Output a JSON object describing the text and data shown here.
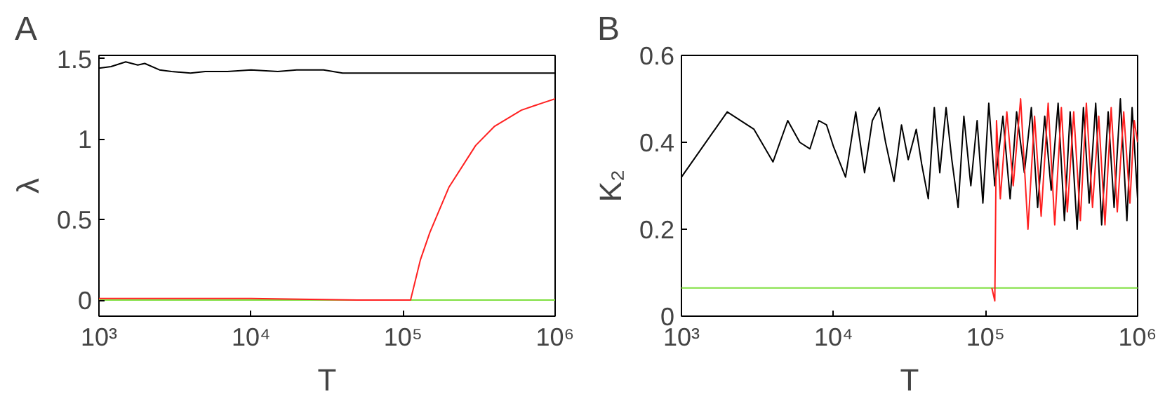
{
  "chart_data": [
    {
      "type": "line",
      "title": "A",
      "xlabel": "T",
      "ylabel": "λ",
      "log": "x",
      "xlim": [
        1000,
        1000000
      ],
      "xticks": [
        {
          "value": 1000,
          "label": "10³"
        },
        {
          "value": 10000,
          "label": "10⁴"
        },
        {
          "value": 100000,
          "label": "10⁵"
        },
        {
          "value": 1000000,
          "label": "10⁶"
        }
      ],
      "ylim": [
        -0.1,
        1.52
      ],
      "yticks": [
        0,
        0.5,
        1,
        1.5
      ],
      "series": [
        {
          "color": "#000000",
          "x": [
            1000,
            1200,
            1500,
            1800,
            2000,
            2500,
            3000,
            4000,
            5000,
            7000,
            10000,
            15000,
            20000,
            30000,
            40000,
            60000,
            100000,
            200000,
            500000,
            1000000
          ],
          "values": [
            1.44,
            1.45,
            1.48,
            1.46,
            1.47,
            1.43,
            1.42,
            1.41,
            1.42,
            1.42,
            1.43,
            1.42,
            1.43,
            1.43,
            1.41,
            1.41,
            1.41,
            1.41,
            1.41,
            1.41
          ]
        },
        {
          "color": "#7fdf3f",
          "x": [
            1000,
            1000000
          ],
          "values": [
            0,
            0
          ]
        },
        {
          "color": "#ff2020",
          "x": [
            1000,
            10000,
            50000,
            112000,
            130000,
            150000,
            200000,
            300000,
            400000,
            600000,
            800000,
            1000000
          ],
          "values": [
            0.01,
            0.01,
            0,
            0,
            0.25,
            0.42,
            0.7,
            0.96,
            1.08,
            1.18,
            1.22,
            1.25
          ]
        }
      ]
    },
    {
      "type": "line",
      "title": "B",
      "xlabel": "T",
      "ylabel": "K₂",
      "log": "x",
      "xlim": [
        1000,
        1000000
      ],
      "xticks": [
        {
          "value": 1000,
          "label": "10³"
        },
        {
          "value": 10000,
          "label": "10⁴"
        },
        {
          "value": 100000,
          "label": "10⁵"
        },
        {
          "value": 1000000,
          "label": "10⁶"
        }
      ],
      "ylim": [
        0,
        0.6
      ],
      "yticks": [
        0,
        0.2,
        0.4,
        0.6
      ],
      "series": [
        {
          "color": "#000000",
          "x": [
            1000,
            2000,
            3000,
            4000,
            5000,
            6000,
            7000,
            8000,
            9000,
            10000,
            12000,
            14000,
            16000,
            18000,
            20000,
            22000,
            25000,
            28000,
            31000,
            35000,
            38000,
            42000,
            46000,
            50000,
            55000,
            60000,
            66000,
            72000,
            80000,
            88000,
            96000,
            105000,
            115000,
            130000,
            145000,
            160000,
            180000,
            200000,
            220000,
            245000,
            270000,
            300000,
            330000,
            360000,
            400000,
            440000,
            480000,
            530000,
            580000,
            640000,
            700000,
            770000,
            850000,
            920000,
            1000000
          ],
          "values": [
            0.32,
            0.47,
            0.43,
            0.355,
            0.45,
            0.4,
            0.385,
            0.45,
            0.44,
            0.39,
            0.32,
            0.47,
            0.33,
            0.45,
            0.48,
            0.4,
            0.31,
            0.44,
            0.36,
            0.43,
            0.35,
            0.27,
            0.48,
            0.33,
            0.48,
            0.36,
            0.25,
            0.46,
            0.3,
            0.45,
            0.26,
            0.49,
            0.3,
            0.46,
            0.27,
            0.47,
            0.33,
            0.48,
            0.25,
            0.46,
            0.29,
            0.49,
            0.22,
            0.47,
            0.2,
            0.48,
            0.26,
            0.49,
            0.21,
            0.47,
            0.25,
            0.5,
            0.22,
            0.48,
            0.27
          ]
        },
        {
          "color": "#7fdf3f",
          "x": [
            1000,
            1000000
          ],
          "values": [
            0.065,
            0.065
          ]
        },
        {
          "color": "#ff2020",
          "x": [
            110000,
            115000,
            118000,
            125000,
            138000,
            152000,
            170000,
            190000,
            210000,
            232000,
            258000,
            285000,
            315000,
            345000,
            380000,
            420000,
            460000,
            505000,
            555000,
            610000,
            670000,
            735000,
            810000,
            890000,
            950000,
            1000000
          ],
          "values": [
            0.065,
            0.035,
            0.45,
            0.27,
            0.47,
            0.3,
            0.5,
            0.2,
            0.46,
            0.23,
            0.49,
            0.21,
            0.48,
            0.24,
            0.47,
            0.22,
            0.49,
            0.25,
            0.46,
            0.21,
            0.48,
            0.24,
            0.47,
            0.26,
            0.45,
            0.4
          ]
        }
      ]
    }
  ]
}
